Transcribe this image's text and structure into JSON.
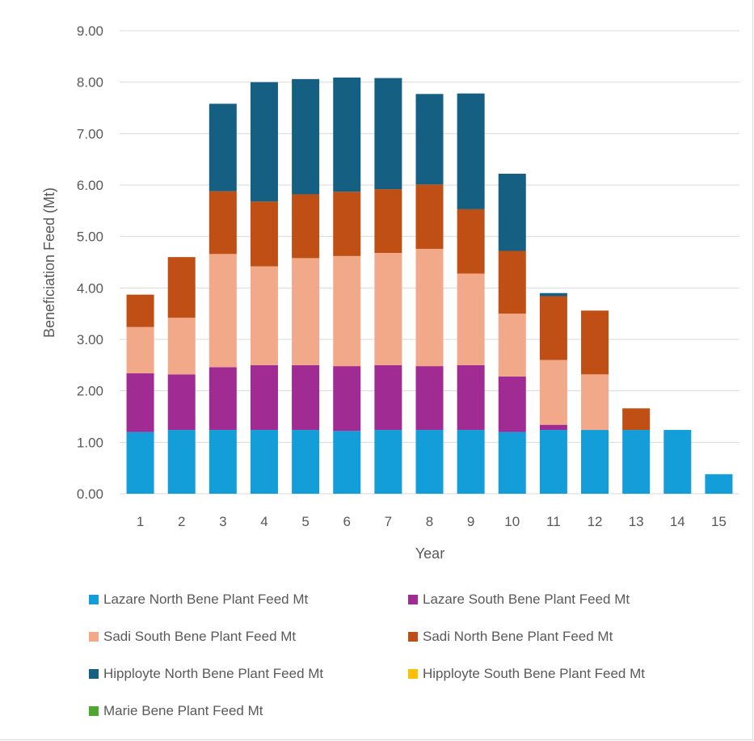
{
  "chart_data": {
    "type": "bar",
    "stacked": true,
    "xlabel": "Year",
    "ylabel": "Beneficiation Feed (Mt)",
    "ylim": [
      0,
      9
    ],
    "yticks": [
      "0.00",
      "1.00",
      "2.00",
      "3.00",
      "4.00",
      "5.00",
      "6.00",
      "7.00",
      "8.00",
      "9.00"
    ],
    "grid": true,
    "legend_position": "bottom",
    "categories": [
      "1",
      "2",
      "3",
      "4",
      "5",
      "6",
      "7",
      "8",
      "9",
      "10",
      "11",
      "12",
      "13",
      "14",
      "15"
    ],
    "series": [
      {
        "name": "Lazare North Bene Plant Feed Mt",
        "color": "#139dd9",
        "values": [
          1.2,
          1.24,
          1.24,
          1.24,
          1.24,
          1.22,
          1.24,
          1.24,
          1.24,
          1.2,
          1.24,
          1.24,
          1.24,
          1.24,
          0.38
        ]
      },
      {
        "name": "Lazare South Bene Plant Feed Mt",
        "color": "#a02b93",
        "values": [
          1.14,
          1.08,
          1.22,
          1.26,
          1.26,
          1.26,
          1.26,
          1.24,
          1.26,
          1.08,
          0.1,
          0,
          0,
          0,
          0
        ]
      },
      {
        "name": "Sadi South Bene Plant Feed Mt",
        "color": "#f1a98a",
        "values": [
          0.9,
          1.1,
          2.2,
          1.92,
          2.08,
          2.14,
          2.18,
          2.28,
          1.78,
          1.22,
          1.26,
          1.08,
          0,
          0,
          0
        ]
      },
      {
        "name": "Sadi North Bene Plant Feed Mt",
        "color": "#c04f15",
        "values": [
          0.63,
          1.18,
          1.22,
          1.26,
          1.24,
          1.25,
          1.24,
          1.25,
          1.25,
          1.22,
          1.24,
          1.24,
          0.42,
          0,
          0
        ]
      },
      {
        "name": "Hipployte North Bene Plant Feed Mt",
        "color": "#156082",
        "values": [
          0,
          0,
          1.7,
          2.32,
          2.24,
          2.22,
          2.16,
          1.76,
          2.25,
          1.5,
          0.06,
          0,
          0,
          0,
          0
        ]
      },
      {
        "name": "Hipployte South Bene Plant Feed Mt",
        "color": "#ffc000",
        "values": [
          0,
          0,
          0,
          0,
          0,
          0,
          0,
          0,
          0,
          0,
          0,
          0,
          0,
          0,
          0
        ]
      },
      {
        "name": "Marie Bene Plant Feed Mt",
        "color": "#4ea72e",
        "values": [
          0,
          0,
          0,
          0,
          0,
          0,
          0,
          0,
          0,
          0,
          0,
          0,
          0,
          0,
          0
        ]
      }
    ]
  }
}
